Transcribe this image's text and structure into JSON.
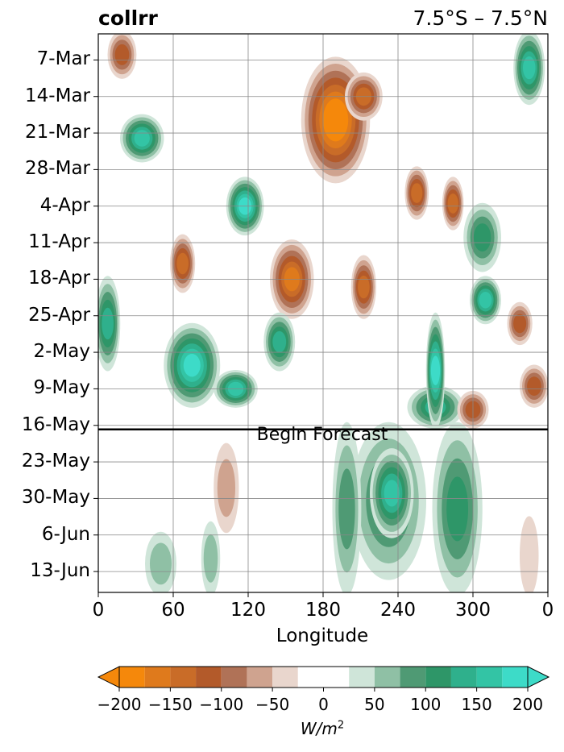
{
  "title_left": "collrr",
  "title_right": "7.5°S – 7.5°N",
  "chart_data": {
    "type": "heatmap",
    "xlabel": "Longitude",
    "x_ticks": [
      "0",
      "60",
      "120",
      "180",
      "240",
      "300",
      "0"
    ],
    "x_tick_values": [
      0,
      60,
      120,
      180,
      240,
      300,
      360
    ],
    "xlim": [
      0,
      360
    ],
    "y_ticks": [
      "7-Mar",
      "14-Mar",
      "21-Mar",
      "28-Mar",
      "4-Apr",
      "11-Apr",
      "18-Apr",
      "25-Apr",
      "2-May",
      "9-May",
      "16-May",
      "23-May",
      "30-May",
      "6-Jun",
      "13-Jun"
    ],
    "ylim": [
      "2-Mar",
      "17-Jun"
    ],
    "forecast_start": "16-May",
    "forecast_label": "Begin Forecast",
    "grid": true,
    "colorbar": {
      "levels": [
        -200,
        -175,
        -150,
        -125,
        -100,
        -75,
        -50,
        -25,
        25,
        50,
        75,
        100,
        125,
        150,
        175,
        200
      ],
      "ticks": [
        "−200",
        "−150",
        "−100",
        "−50",
        "0",
        "50",
        "100",
        "150",
        "200"
      ],
      "tick_values": [
        -200,
        -150,
        -100,
        -50,
        0,
        50,
        100,
        150,
        200
      ],
      "label_base": "W/m",
      "label_exp": "2",
      "extend": "both",
      "colors": [
        "#f5880b",
        "#df7a1c",
        "#c96c28",
        "#b35a2a",
        "#b07257",
        "#cfa38f",
        "#e9d6cd",
        "#ffffff",
        "#cfe5d9",
        "#8fc0a5",
        "#4f9a74",
        "#2e9668",
        "#2fb08c",
        "#33c4a5",
        "#3ddbc8"
      ],
      "under_color": "#f5880b",
      "over_color": "#3ddbc8"
    },
    "features": [
      {
        "lon": [
          165,
          215
        ],
        "date": [
          "7-Mar",
          "30-Mar"
        ],
        "value": -200
      },
      {
        "lon": [
          200,
          225
        ],
        "date": [
          "10-Mar",
          "18-Mar"
        ],
        "value": -125
      },
      {
        "lon": [
          105,
          130
        ],
        "date": [
          "30-Mar",
          "9-Apr"
        ],
        "value": 175
      },
      {
        "lon": [
          55,
          95
        ],
        "date": [
          "27-Apr",
          "12-May"
        ],
        "value": 175
      },
      {
        "lon": [
          95,
          125
        ],
        "date": [
          "6-May",
          "12-May"
        ],
        "value": 150
      },
      {
        "lon": [
          250,
          290
        ],
        "date": [
          "9-May",
          "16-May"
        ],
        "value": 125
      },
      {
        "lon": [
          20,
          50
        ],
        "date": [
          "18-Mar",
          "26-Mar"
        ],
        "value": 150
      },
      {
        "lon": [
          205,
          260
        ],
        "date": [
          "16-May",
          "14-Jun"
        ],
        "value": 100
      },
      {
        "lon": [
          220,
          250
        ],
        "date": [
          "21-May",
          "6-Jun"
        ],
        "value": 140
      },
      {
        "lon": [
          270,
          305
        ],
        "date": [
          "16-May",
          "17-Jun"
        ],
        "value": 90
      },
      {
        "lon": [
          190,
          208
        ],
        "date": [
          "16-May",
          "17-Jun"
        ],
        "value": 65
      },
      {
        "lon": [
          140,
          170
        ],
        "date": [
          "11-Apr",
          "25-Apr"
        ],
        "value": -150
      },
      {
        "lon": [
          205,
          220
        ],
        "date": [
          "14-Apr",
          "25-Apr"
        ],
        "value": -130
      },
      {
        "lon": [
          60,
          75
        ],
        "date": [
          "10-Apr",
          "20-Apr"
        ],
        "value": -120
      },
      {
        "lon": [
          330,
          345
        ],
        "date": [
          "23-Apr",
          "30-Apr"
        ],
        "value": -110
      },
      {
        "lon": [
          278,
          290
        ],
        "date": [
          "30-Mar",
          "8-Apr"
        ],
        "value": -130
      },
      {
        "lon": [
          248,
          262
        ],
        "date": [
          "28-Mar",
          "6-Apr"
        ],
        "value": -115
      },
      {
        "lon": [
          10,
          28
        ],
        "date": [
          "2-Mar",
          "10-Mar"
        ],
        "value": -100
      },
      {
        "lon": [
          290,
          310
        ],
        "date": [
          "10-May",
          "16-May"
        ],
        "value": -100
      },
      {
        "lon": [
          340,
          358
        ],
        "date": [
          "5-May",
          "12-May"
        ],
        "value": -110
      },
      {
        "lon": [
          265,
          275
        ],
        "date": [
          "25-Apr",
          "16-May"
        ],
        "value": 175
      },
      {
        "lon": [
          300,
          320
        ],
        "date": [
          "18-Apr",
          "26-Apr"
        ],
        "value": 150
      },
      {
        "lon": [
          335,
          355
        ],
        "date": [
          "2-Mar",
          "15-Mar"
        ],
        "value": 140
      },
      {
        "lon": [
          0,
          15
        ],
        "date": [
          "18-Apr",
          "5-May"
        ],
        "value": 120
      },
      {
        "lon": [
          135,
          155
        ],
        "date": [
          "25-Apr",
          "5-May"
        ],
        "value": 130
      },
      {
        "lon": [
          295,
          320
        ],
        "date": [
          "4-Apr",
          "16-Apr"
        ],
        "value": 110
      },
      {
        "lon": [
          95,
          110
        ],
        "date": [
          "20-May",
          "5-Jun"
        ],
        "value": -60
      },
      {
        "lon": [
          85,
          95
        ],
        "date": [
          "4-Jun",
          "17-Jun"
        ],
        "value": 40
      },
      {
        "lon": [
          40,
          60
        ],
        "date": [
          "6-Jun",
          "17-Jun"
        ],
        "value": 45
      },
      {
        "lon": [
          340,
          350
        ],
        "date": [
          "3-Jun",
          "17-Jun"
        ],
        "value": -35
      }
    ]
  }
}
